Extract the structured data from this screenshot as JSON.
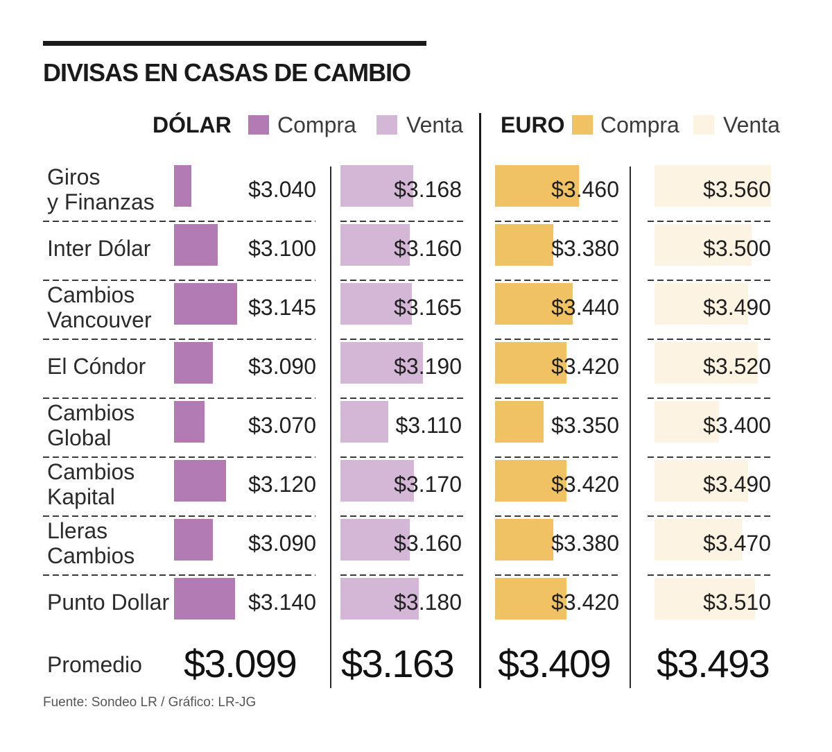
{
  "chart_data": {
    "type": "bar",
    "title": "DIVISAS EN CASAS DE CAMBIO",
    "categories": [
      "Giros\ny Finanzas",
      "Inter Dólar",
      "Cambios\nVancouver",
      "El Cóndor",
      "Cambios\nGlobal",
      "Cambios\nKapital",
      "Lleras\nCambios",
      "Punto Dollar"
    ],
    "value_prefix": "$",
    "thousands_sep": ".",
    "average_label": "Promedio",
    "groups": [
      {
        "name": "DÓLAR",
        "xlim": [
          3000,
          3280
        ],
        "series": [
          {
            "name": "Compra",
            "color": "#b27bb4",
            "values": [
              3040,
              3100,
              3145,
              3090,
              3070,
              3120,
              3090,
              3140
            ],
            "average": 3099
          },
          {
            "name": "Venta",
            "color": "#d4b6d7",
            "values": [
              3168,
              3160,
              3165,
              3190,
              3110,
              3170,
              3160,
              3180
            ],
            "average": 3163
          }
        ]
      },
      {
        "name": "EURO",
        "xlim": [
          3200,
          3575
        ],
        "series": [
          {
            "name": "Compra",
            "color": "#f1c263",
            "values": [
              3460,
              3380,
              3440,
              3420,
              3350,
              3420,
              3380,
              3420
            ],
            "average": 3409
          },
          {
            "name": "Venta",
            "color": "#fdf3e3",
            "values": [
              3560,
              3500,
              3490,
              3520,
              3400,
              3490,
              3470,
              3510
            ],
            "average": 3493
          }
        ]
      }
    ]
  },
  "source": "Fuente: Sondeo LR / Gráfico: LR-JG"
}
